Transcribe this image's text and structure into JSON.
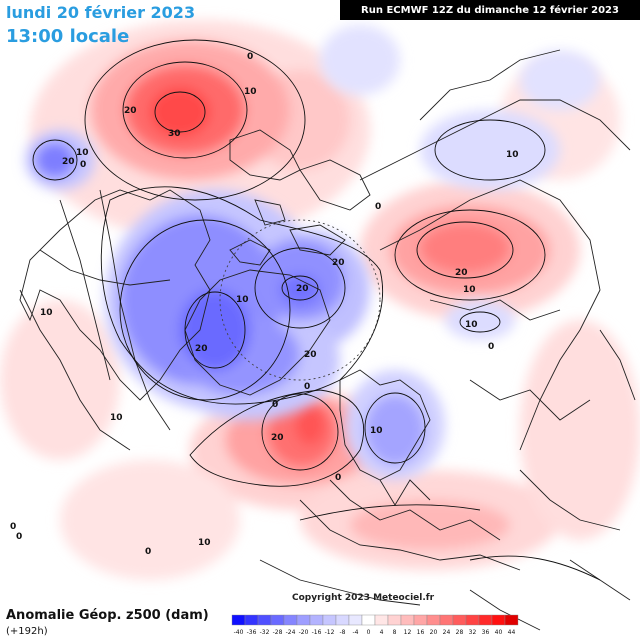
{
  "header": {
    "date": "lundi 20 février 2023",
    "time": "13:00 locale",
    "run": "Run ECMWF 12Z du dimanche 12 février 2023"
  },
  "footer": {
    "title": "Anomalie Géop. z500 (dam)",
    "subtitle": "(+192h)",
    "copyright": "Copyright 2023 Meteociel.fr"
  },
  "legend": {
    "ticks": [
      "-40",
      "-36",
      "-32",
      "-28",
      "-24",
      "-20",
      "-16",
      "-12",
      "-8",
      "-4",
      "0",
      "4",
      "8",
      "12",
      "16",
      "20",
      "24",
      "28",
      "32",
      "36",
      "40",
      "44"
    ],
    "colors": [
      "#1010ff",
      "#3434ff",
      "#5050ff",
      "#6a6aff",
      "#8585ff",
      "#9e9eff",
      "#b3b3ff",
      "#c6c6ff",
      "#d8d8ff",
      "#e8e8ff",
      "#ffffff",
      "#ffe6e6",
      "#ffd2d2",
      "#ffbcbc",
      "#ffa6a6",
      "#ff8e8e",
      "#ff7575",
      "#ff5c5c",
      "#ff4444",
      "#ff2a2a",
      "#ff1010",
      "#e00000"
    ]
  },
  "contour_labels": {
    "pacific_high_0": "0",
    "pacific_high_10": "10",
    "pacific_high_20": "20",
    "pacific_high_30": "30",
    "alaska_low_20": "20",
    "alaska_low_10": "10",
    "alaska_low_0": "0",
    "canada_low_20": "20",
    "canada_low_10": "10",
    "greenland_low_20a": "20",
    "greenland_low_20b": "20",
    "greenland_low_20c": "20",
    "arctic_0": "0",
    "siberia_low_10": "10",
    "siberia_0": "0",
    "asia_high_20": "20",
    "asia_high_10": "10",
    "asia_low_10": "10",
    "asia_0": "0",
    "atlantic_high_20": "20",
    "atlantic_0": "0",
    "europe_low_10": "10",
    "europe_0": "0",
    "west_10": "10",
    "west_10b": "10",
    "sw_0a": "0",
    "sw_0b": "0",
    "sw_10": "10",
    "south_0": "0"
  }
}
